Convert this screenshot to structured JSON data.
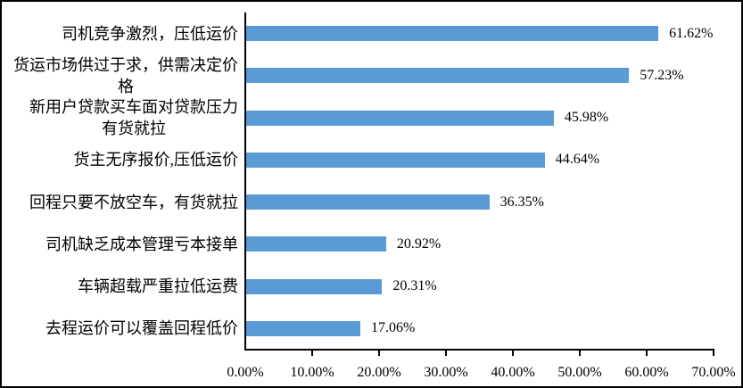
{
  "chart_data": {
    "type": "bar",
    "orientation": "horizontal",
    "categories": [
      "司机竞争激烈，压低运价",
      "货运市场供过于求，供需决定价格",
      "新用户贷款买车面对贷款压力有货就拉",
      "货主无序报价,压低运价",
      "回程只要不放空车，有货就拉",
      "司机缺乏成本管理亏本接单",
      "车辆超载严重拉低运费",
      "去程运价可以覆盖回程低价"
    ],
    "category_lines": [
      [
        "司机竞争激烈，压低运价"
      ],
      [
        "货运市场供过于求，供需决定价",
        "格"
      ],
      [
        "新用户贷款买车面对贷款压力",
        "有货就拉"
      ],
      [
        "货主无序报价,压低运价"
      ],
      [
        "回程只要不放空车，有货就拉"
      ],
      [
        "司机缺乏成本管理亏本接单"
      ],
      [
        "车辆超载严重拉低运费"
      ],
      [
        "去程运价可以覆盖回程低价"
      ]
    ],
    "values": [
      61.62,
      57.23,
      45.98,
      44.64,
      36.35,
      20.92,
      20.31,
      17.06
    ],
    "value_labels": [
      "61.62%",
      "57.23%",
      "45.98%",
      "44.64%",
      "36.35%",
      "20.92%",
      "20.31%",
      "17.06%"
    ],
    "x_axis": {
      "tick_labels": [
        "0.00%",
        "10.00%",
        "20.00%",
        "30.00%",
        "40.00%",
        "50.00%",
        "60.00%",
        "70.00%"
      ],
      "min": 0,
      "max": 70,
      "major_unit": 10
    },
    "grid": false,
    "colors": {
      "bar": "#5B9BD5",
      "axis": "#000000",
      "text": "#000000",
      "background": "#FFFFFF",
      "frame_border": "#000000"
    }
  }
}
